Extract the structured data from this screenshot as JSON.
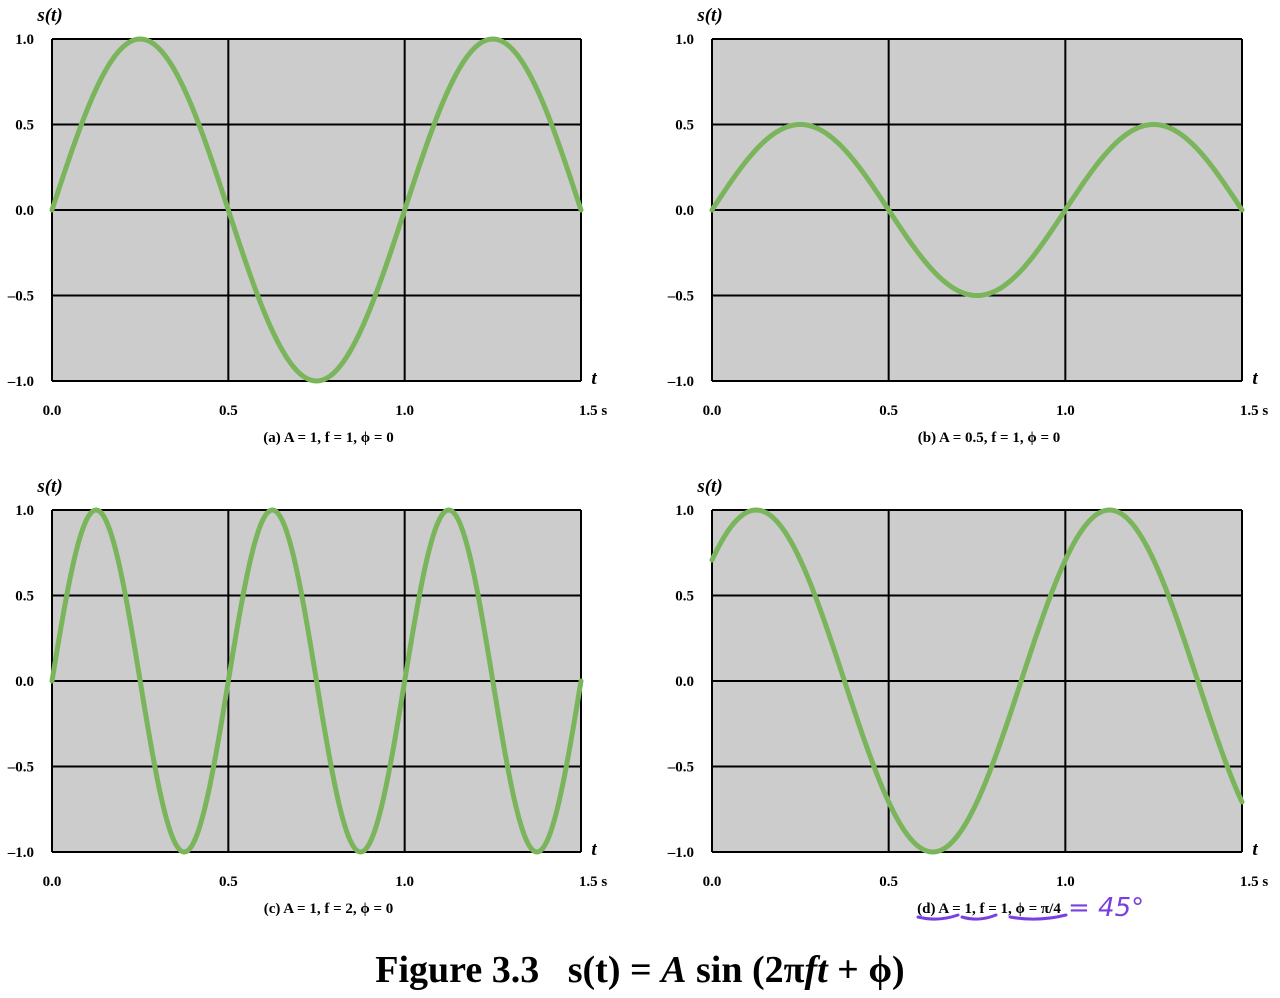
{
  "chart_data": [
    {
      "type": "line",
      "caption": "(a) A = 1, f = 1, ϕ = 0",
      "amplitude": 1,
      "frequency": 1,
      "phase": 0,
      "ylabel": "s(t)",
      "xlabel": "t",
      "x_unit": "s",
      "xlim": [
        0,
        1.5
      ],
      "ylim": [
        -1,
        1
      ],
      "x_ticks": [
        0,
        0.5,
        1,
        1.5
      ],
      "x_tick_labels": [
        "0.0",
        "0.5",
        "1.0",
        "1.5 s"
      ],
      "y_ticks": [
        1,
        0.5,
        0,
        -0.5,
        -1
      ],
      "y_tick_labels": [
        "1.0",
        "0.5",
        "0.0",
        "–0.5",
        "–1.0"
      ],
      "grid": true,
      "x": [
        0,
        0.125,
        0.25,
        0.375,
        0.5,
        0.625,
        0.75,
        0.875,
        1,
        1.125,
        1.25,
        1.375,
        1.5
      ],
      "y": [
        0,
        0.71,
        1,
        0.71,
        0,
        -0.71,
        -1,
        -0.71,
        0,
        0.71,
        1,
        0.71,
        0
      ]
    },
    {
      "type": "line",
      "caption": "(b) A = 0.5, f = 1, ϕ = 0",
      "amplitude": 0.5,
      "frequency": 1,
      "phase": 0,
      "ylabel": "s(t)",
      "xlabel": "t",
      "x_unit": "s",
      "xlim": [
        0,
        1.5
      ],
      "ylim": [
        -1,
        1
      ],
      "x_ticks": [
        0,
        0.5,
        1,
        1.5
      ],
      "x_tick_labels": [
        "0.0",
        "0.5",
        "1.0",
        "1.5 s"
      ],
      "y_ticks": [
        1,
        0.5,
        0,
        -0.5,
        -1
      ],
      "y_tick_labels": [
        "1.0",
        "0.5",
        "0.0",
        "–0.5",
        "–1.0"
      ],
      "grid": true,
      "x": [
        0,
        0.125,
        0.25,
        0.375,
        0.5,
        0.625,
        0.75,
        0.875,
        1,
        1.125,
        1.25,
        1.375,
        1.5
      ],
      "y": [
        0,
        0.35,
        0.5,
        0.35,
        0,
        -0.35,
        -0.5,
        -0.35,
        0,
        0.35,
        0.5,
        0.35,
        0
      ]
    },
    {
      "type": "line",
      "caption": "(c) A = 1, f = 2, ϕ = 0",
      "amplitude": 1,
      "frequency": 2,
      "phase": 0,
      "ylabel": "s(t)",
      "xlabel": "t",
      "x_unit": "s",
      "xlim": [
        0,
        1.5
      ],
      "ylim": [
        -1,
        1
      ],
      "x_ticks": [
        0,
        0.5,
        1,
        1.5
      ],
      "x_tick_labels": [
        "0.0",
        "0.5",
        "1.0",
        "1.5 s"
      ],
      "y_ticks": [
        1,
        0.5,
        0,
        -0.5,
        -1
      ],
      "y_tick_labels": [
        "1.0",
        "0.5",
        "0.0",
        "–0.5",
        "–1.0"
      ],
      "grid": true,
      "x": [
        0,
        0.125,
        0.25,
        0.375,
        0.5,
        0.625,
        0.75,
        0.875,
        1,
        1.125,
        1.25,
        1.375,
        1.5
      ],
      "y": [
        0,
        1,
        0,
        -1,
        0,
        1,
        0,
        -1,
        0,
        1,
        0,
        -1,
        0
      ]
    },
    {
      "type": "line",
      "caption": "(d) A = 1, f = 1, ϕ = π/4",
      "annotation": "= 45°",
      "amplitude": 1,
      "frequency": 1,
      "phase": 0.785398,
      "ylabel": "s(t)",
      "xlabel": "t",
      "x_unit": "s",
      "xlim": [
        0,
        1.5
      ],
      "ylim": [
        -1,
        1
      ],
      "x_ticks": [
        0,
        0.5,
        1,
        1.5
      ],
      "x_tick_labels": [
        "0.0",
        "0.5",
        "1.0",
        "1.5 s"
      ],
      "y_ticks": [
        1,
        0.5,
        0,
        -0.5,
        -1
      ],
      "y_tick_labels": [
        "1.0",
        "0.5",
        "0.0",
        "–0.5",
        "–1.0"
      ],
      "grid": true,
      "x": [
        0,
        0.125,
        0.25,
        0.375,
        0.5,
        0.625,
        0.75,
        0.875,
        1,
        1.125,
        1.25,
        1.375,
        1.5
      ],
      "y": [
        0.71,
        1,
        0.71,
        0,
        -0.71,
        -1,
        -0.71,
        0,
        0.71,
        1,
        0.71,
        0,
        -0.71
      ]
    }
  ],
  "figure_title": {
    "label": "Figure 3.3",
    "formula_parts": [
      "s(t) = ",
      "A",
      " sin (2π",
      "ft",
      " + ϕ)"
    ]
  },
  "colors": {
    "curve": "#7ab55c",
    "plot_bg": "#cccccc",
    "grid": "#000000",
    "annotation": "#7a3fe0"
  }
}
